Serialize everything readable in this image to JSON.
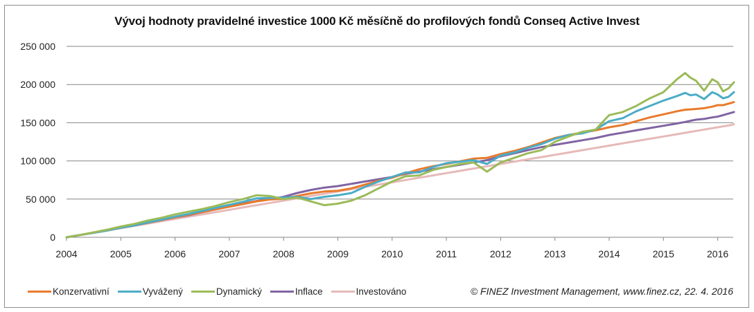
{
  "chart_data": {
    "type": "line",
    "title": "Vývoj hodnoty pravidelné investice 1000 Kč měsíčně do profilových fondů Conseq Active Invest",
    "xlabel": "",
    "ylabel": "",
    "xlim": [
      2004,
      2016.35
    ],
    "ylim": [
      0,
      250000
    ],
    "grid": true,
    "legend_position": "bottom",
    "x_ticks": [
      "2004",
      "2005",
      "2006",
      "2007",
      "2008",
      "2009",
      "2010",
      "2011",
      "2012",
      "2013",
      "2014",
      "2015",
      "2016"
    ],
    "y_ticks": [
      "0",
      "50 000",
      "100 000",
      "150 000",
      "200 000",
      "250 000"
    ],
    "y_tick_values": [
      0,
      50000,
      100000,
      150000,
      200000,
      250000
    ],
    "x": [
      2004.0,
      2004.25,
      2004.5,
      2004.75,
      2005.0,
      2005.25,
      2005.5,
      2005.75,
      2006.0,
      2006.25,
      2006.5,
      2006.75,
      2007.0,
      2007.25,
      2007.5,
      2007.75,
      2008.0,
      2008.25,
      2008.5,
      2008.75,
      2009.0,
      2009.25,
      2009.5,
      2009.75,
      2010.0,
      2010.25,
      2010.5,
      2010.75,
      2011.0,
      2011.25,
      2011.5,
      2011.75,
      2012.0,
      2012.25,
      2012.5,
      2012.75,
      2013.0,
      2013.25,
      2013.5,
      2013.75,
      2014.0,
      2014.25,
      2014.5,
      2014.75,
      2015.0,
      2015.25,
      2015.4,
      2015.5,
      2015.6,
      2015.75,
      2015.9,
      2016.0,
      2016.1,
      2016.2,
      2016.3
    ],
    "series": [
      {
        "name": "Konzervativní",
        "color": "#E97A2B",
        "values": [
          0,
          3000,
          6000,
          9000,
          12500,
          15500,
          19000,
          22500,
          26000,
          29500,
          33000,
          36500,
          40000,
          43500,
          47000,
          49500,
          50500,
          54000,
          57500,
          60000,
          61000,
          64000,
          69000,
          74000,
          78000,
          84000,
          89000,
          93000,
          96000,
          99500,
          103000,
          104000,
          109000,
          113000,
          118000,
          124000,
          130000,
          134000,
          137000,
          140000,
          144000,
          147000,
          152000,
          157000,
          161000,
          165000,
          167000,
          167500,
          168000,
          169000,
          171000,
          173000,
          173000,
          175000,
          177000
        ]
      },
      {
        "name": "Vyvážený",
        "color": "#4BACC6",
        "values": [
          0,
          3000,
          6000,
          9000,
          12500,
          15500,
          19500,
          23000,
          27000,
          30500,
          34500,
          38500,
          42500,
          46500,
          51000,
          51500,
          52000,
          53000,
          50000,
          53000,
          55000,
          58000,
          66000,
          73000,
          79000,
          85000,
          85000,
          92000,
          97000,
          99000,
          101000,
          96000,
          107000,
          111000,
          117000,
          122000,
          129000,
          134000,
          136000,
          141000,
          152000,
          156000,
          165000,
          172000,
          179000,
          185000,
          189000,
          186000,
          187000,
          181000,
          190000,
          187000,
          182000,
          184000,
          190000
        ]
      },
      {
        "name": "Dynamický",
        "color": "#9BBB59",
        "values": [
          0,
          3000,
          6500,
          10000,
          14000,
          17500,
          22000,
          25500,
          30000,
          33500,
          37000,
          41000,
          46000,
          50000,
          55000,
          54000,
          50000,
          52000,
          47000,
          42000,
          44000,
          48000,
          55000,
          64000,
          73000,
          80000,
          81000,
          88000,
          92000,
          96000,
          98000,
          86000,
          98000,
          104000,
          110000,
          114000,
          125000,
          132000,
          138000,
          141000,
          160000,
          164000,
          172000,
          182000,
          190000,
          207000,
          215000,
          209000,
          205000,
          192000,
          207000,
          203000,
          191000,
          195000,
          203000
        ]
      },
      {
        "name": "Inflace",
        "color": "#8064A2",
        "values": [
          0,
          3000,
          6000,
          9000,
          12500,
          15500,
          19000,
          22500,
          26000,
          29000,
          33000,
          36500,
          40500,
          44000,
          47500,
          50000,
          53000,
          58000,
          62000,
          65000,
          67000,
          70000,
          73000,
          76000,
          79000,
          83000,
          86000,
          89000,
          92000,
          95000,
          98000,
          101000,
          106000,
          110000,
          114000,
          118000,
          121000,
          124000,
          127000,
          130000,
          134000,
          137000,
          140000,
          143000,
          146000,
          149000,
          151000,
          152500,
          154000,
          155000,
          157000,
          158000,
          160000,
          162000,
          164000
        ]
      },
      {
        "name": "Investováno",
        "color": "#E6B9B8",
        "values": [
          0,
          3000,
          6000,
          9000,
          12000,
          15000,
          18000,
          21000,
          24000,
          27000,
          30000,
          33000,
          36000,
          39000,
          42000,
          45000,
          48000,
          51000,
          54000,
          57000,
          60000,
          63000,
          66000,
          69000,
          72000,
          75000,
          78000,
          81000,
          84000,
          87000,
          90000,
          93000,
          96000,
          99000,
          102000,
          105000,
          108000,
          111000,
          114000,
          117000,
          120000,
          123000,
          126000,
          129000,
          132000,
          135000,
          136800,
          138000,
          139200,
          141000,
          142800,
          144000,
          145200,
          146400,
          148000
        ]
      }
    ]
  },
  "legend": {
    "items": [
      "Konzervativní",
      "Vyvážený",
      "Dynamický",
      "Inflace",
      "Investováno"
    ]
  },
  "credit": "© FINEZ Investment Management, www.finez.cz, 22. 4. 2016"
}
